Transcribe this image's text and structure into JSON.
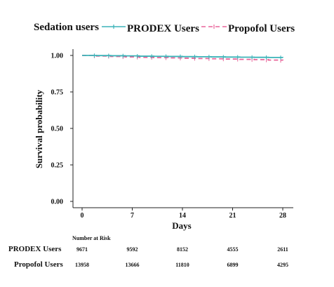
{
  "chart_data": {
    "type": "line",
    "legend": {
      "title": "Sedation users",
      "placement": "top"
    },
    "xlabel": "Days",
    "ylabel": "Survival probability",
    "xlim": [
      0,
      28
    ],
    "ylim": [
      0,
      1
    ],
    "x_ticks": [
      0,
      7,
      14,
      21,
      28
    ],
    "y_ticks": [
      0.0,
      0.25,
      0.5,
      0.75,
      1.0
    ],
    "y_tick_labels": [
      "0.00",
      "0.25",
      "0.50",
      "0.75",
      "1.00"
    ],
    "grid": false,
    "series": [
      {
        "name": "PRODEX Users",
        "color": "#3bb3b8",
        "line_style": "solid",
        "x": [
          0,
          2,
          4,
          6,
          8,
          10,
          12,
          14,
          16,
          18,
          20,
          22,
          24,
          26,
          28
        ],
        "y": [
          1.0,
          0.999,
          0.998,
          0.997,
          0.995,
          0.994,
          0.993,
          0.992,
          0.991,
          0.99,
          0.989,
          0.988,
          0.987,
          0.986,
          0.985
        ]
      },
      {
        "name": "Propofol Users",
        "color": "#e8649a",
        "line_style": "dashed",
        "x": [
          0,
          2,
          4,
          6,
          8,
          10,
          12,
          14,
          16,
          18,
          20,
          22,
          24,
          26,
          28
        ],
        "y": [
          1.0,
          0.996,
          0.993,
          0.99,
          0.987,
          0.985,
          0.983,
          0.981,
          0.979,
          0.977,
          0.975,
          0.973,
          0.971,
          0.968,
          0.965
        ]
      }
    ],
    "risk_table": {
      "header": "Number at Risk",
      "rows": [
        {
          "label": "PRODEX Users",
          "values": [
            "9671",
            "9592",
            "8152",
            "4555",
            "2611"
          ]
        },
        {
          "label": "Propofol Users",
          "values": [
            "13958",
            "13666",
            "11810",
            "6899",
            "4295"
          ]
        }
      ]
    }
  }
}
